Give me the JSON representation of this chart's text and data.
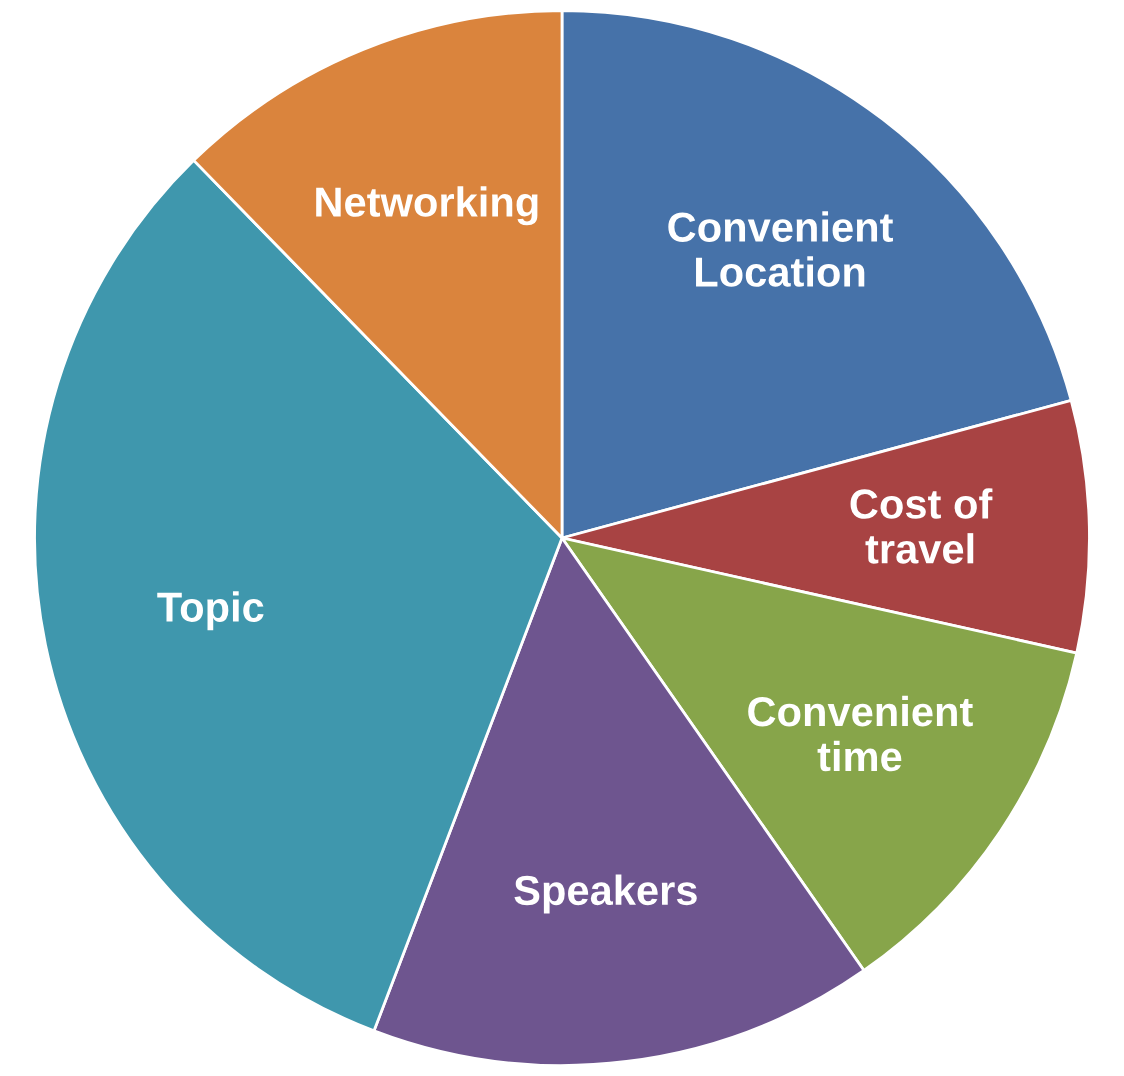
{
  "chart_data": {
    "type": "pie",
    "categories": [
      "Convenient\nLocation",
      "Cost of\ntravel",
      "Convenient\ntime",
      "Speakers",
      "Topic",
      "Networking"
    ],
    "values": [
      20.8,
      7.7,
      11.8,
      15.5,
      31.9,
      12.3
    ],
    "colors": [
      "#4672a9",
      "#a84343",
      "#87a54a",
      "#6e558f",
      "#3f97ad",
      "#da843d"
    ],
    "legend": false
  }
}
